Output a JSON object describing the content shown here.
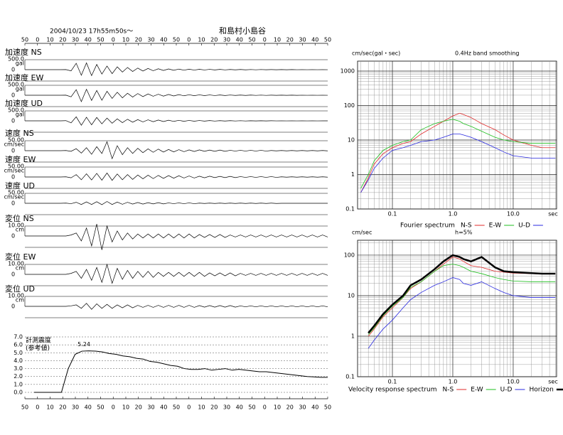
{
  "chart_data": [
    {
      "type": "waveform",
      "title": "2004/10/23 17h55m50s〜",
      "subtitle": "和島村小島谷",
      "time_labels": [
        50,
        0,
        10,
        20,
        30,
        40,
        50,
        0,
        10,
        20,
        30,
        40,
        50,
        0,
        10,
        20,
        30,
        40,
        50,
        0,
        10,
        20,
        30,
        40,
        50
      ],
      "traces": [
        {
          "label": "加速度 NS",
          "scale": 500,
          "scale_label": "500.0",
          "unit": "gal",
          "zero_label": "0",
          "values": [
            0,
            0,
            0,
            0,
            0,
            0,
            0,
            0,
            5,
            -60,
            320,
            -280,
            340,
            -300,
            260,
            -220,
            180,
            -200,
            140,
            -120,
            110,
            -90,
            80,
            -70,
            60,
            -55,
            45,
            -40,
            35,
            -30,
            28,
            -25,
            22,
            -20,
            18,
            -16,
            15,
            -14,
            12,
            -11,
            10,
            -9,
            8,
            -8,
            7,
            -6,
            6,
            -5,
            5,
            -5,
            4,
            -4,
            4,
            -3,
            3,
            -3,
            3,
            -2,
            2,
            -2
          ]
        },
        {
          "label": "加速度 EW",
          "scale": 500,
          "scale_label": "500.0",
          "unit": "gal",
          "zero_label": "0",
          "values": [
            0,
            0,
            0,
            0,
            0,
            0,
            0,
            0,
            5,
            -80,
            280,
            -320,
            300,
            -260,
            240,
            -250,
            200,
            -160,
            150,
            -130,
            100,
            -90,
            85,
            -70,
            65,
            -50,
            50,
            -45,
            40,
            -35,
            30,
            -28,
            25,
            -22,
            20,
            -18,
            16,
            -15,
            13,
            -12,
            11,
            -10,
            9,
            -8,
            8,
            -7,
            6,
            -6,
            5,
            -5,
            5,
            -4,
            4,
            -4,
            3,
            -3,
            3,
            -3,
            2,
            -2
          ]
        },
        {
          "label": "加速度 UD",
          "scale": 500,
          "scale_label": "500.0",
          "unit": "gal",
          "zero_label": "0",
          "values": [
            0,
            0,
            0,
            0,
            0,
            0,
            0,
            0,
            10,
            -100,
            200,
            -220,
            180,
            -200,
            170,
            -150,
            140,
            -120,
            100,
            -90,
            80,
            -70,
            60,
            -55,
            50,
            -45,
            40,
            -35,
            30,
            -28,
            25,
            -22,
            20,
            -18,
            15,
            -14,
            12,
            -11,
            10,
            -9,
            8,
            -7,
            6,
            -6,
            5,
            -5,
            4,
            -4,
            4,
            -3,
            3,
            -3,
            3,
            -2,
            2,
            -2,
            2,
            -2,
            1,
            -1
          ]
        },
        {
          "label": "速度 NS",
          "scale": 50,
          "scale_label": "50.00",
          "unit": "cm/sec",
          "zero_label": "0",
          "values": [
            0,
            0,
            0,
            0,
            0,
            0,
            0,
            0,
            1,
            -3,
            10,
            -12,
            15,
            -18,
            20,
            -14,
            45,
            -40,
            25,
            -20,
            15,
            -14,
            12,
            -10,
            9,
            -8,
            8,
            -7,
            6,
            -6,
            5,
            -5,
            4,
            -4,
            4,
            -3,
            3,
            -3,
            3,
            -3,
            2,
            -2,
            2,
            -2,
            2,
            -2,
            2,
            -2,
            1,
            -1,
            1,
            -1,
            1,
            -1,
            1,
            -1,
            1,
            -1,
            1,
            -1
          ]
        },
        {
          "label": "速度 EW",
          "scale": 50,
          "scale_label": "50.00",
          "unit": "cm/sec",
          "zero_label": "0",
          "values": [
            0,
            0,
            0,
            0,
            0,
            0,
            0,
            0,
            1,
            -4,
            12,
            -14,
            16,
            -15,
            18,
            -16,
            20,
            -17,
            15,
            -14,
            12,
            -12,
            10,
            -9,
            9,
            -8,
            8,
            -7,
            7,
            -6,
            6,
            -5,
            5,
            -5,
            4,
            -4,
            4,
            -3,
            3,
            -3,
            3,
            -3,
            2,
            -2,
            2,
            -2,
            2,
            -2,
            2,
            -2,
            1,
            -1,
            1,
            -1,
            1,
            -1,
            1,
            -1,
            1,
            -1
          ]
        },
        {
          "label": "速度 UD",
          "scale": 50,
          "scale_label": "50.00",
          "unit": "cm/sec",
          "zero_label": "0",
          "values": [
            0,
            0,
            0,
            0,
            0,
            0,
            0,
            0,
            1,
            -2,
            5,
            -6,
            7,
            -6,
            8,
            -7,
            9,
            -6,
            6,
            -5,
            5,
            -4,
            4,
            -4,
            3,
            -3,
            3,
            -3,
            2,
            -2,
            2,
            -2,
            2,
            -2,
            1,
            -1,
            1,
            -1,
            1,
            -1,
            1,
            -1,
            1,
            -1,
            1,
            -1,
            1,
            -1,
            1,
            -1,
            0,
            0,
            0,
            0,
            0,
            0,
            0,
            0,
            0,
            0
          ]
        },
        {
          "label": "変位 NS",
          "scale": 10,
          "scale_label": "10.00",
          "unit": "cm",
          "zero_label": "0",
          "values": [
            0,
            0,
            0,
            0,
            0,
            0,
            0,
            0,
            0,
            1,
            3,
            -5,
            8,
            -10,
            12,
            -14,
            10,
            -6,
            5,
            -4,
            3,
            -3,
            2,
            -2,
            2,
            -2,
            2,
            -2,
            2,
            -2,
            2,
            -2,
            2,
            -2,
            1.5,
            -1.5,
            1.5,
            -1.5,
            1.5,
            -1.5,
            1,
            -1,
            1,
            -1,
            1,
            -1,
            1,
            -1,
            1,
            -1,
            1,
            -1,
            1,
            -1,
            1,
            -1,
            1,
            -1,
            1,
            -1
          ]
        },
        {
          "label": "変位 EW",
          "scale": 10,
          "scale_label": "10.00",
          "unit": "cm",
          "zero_label": "0",
          "values": [
            0,
            0,
            0,
            0,
            0,
            0,
            0,
            0,
            0,
            1,
            3,
            -4,
            5,
            -6,
            7,
            -8,
            10,
            -9,
            6,
            -5,
            4,
            -4,
            3,
            -3,
            3,
            -3,
            2,
            -2,
            2,
            -2,
            2,
            -2,
            2,
            -2,
            2,
            -2,
            1.5,
            -1.5,
            1.5,
            -1.5,
            1.5,
            -1.5,
            1,
            -1,
            1,
            -1,
            1,
            -1,
            1,
            -1,
            1,
            -1,
            1,
            -1,
            1,
            -1,
            1,
            -1,
            1,
            -1
          ]
        },
        {
          "label": "変位 UD",
          "scale": 10,
          "scale_label": "10.00",
          "unit": "cm",
          "zero_label": "0",
          "values": [
            0,
            0,
            0,
            0,
            0,
            0,
            0,
            0,
            0,
            0.5,
            1.5,
            -2,
            3,
            -3,
            2.5,
            -2,
            2,
            -2,
            1.5,
            -1.5,
            1.5,
            -1.5,
            1,
            -1,
            1,
            -1,
            1,
            -1,
            1,
            -1,
            1,
            -1,
            1,
            -1,
            0.8,
            -0.8,
            0.8,
            -0.8,
            0.8,
            -0.8,
            0.8,
            -0.8,
            0.5,
            -0.5,
            0.5,
            -0.5,
            0.5,
            -0.5,
            0.5,
            -0.5,
            0.5,
            -0.5,
            0.5,
            -0.5,
            0.5,
            -0.5,
            0.5,
            -0.5,
            0.5,
            -0.5
          ]
        }
      ]
    },
    {
      "type": "line",
      "title": "計測震度",
      "subtitle": "(参考値)",
      "peak": 5.24,
      "peak_label": "5.24",
      "time_labels": [
        50,
        0,
        10,
        20,
        30,
        40,
        50,
        0,
        10,
        20,
        30,
        40,
        50,
        0,
        10,
        20,
        30,
        40,
        50,
        0,
        10,
        20,
        30,
        40,
        50
      ],
      "values": [
        0,
        0,
        0,
        0,
        0,
        3.0,
        4.8,
        5.2,
        5.24,
        5.2,
        5.1,
        4.9,
        4.8,
        4.6,
        4.5,
        4.3,
        4.2,
        3.9,
        3.8,
        3.6,
        3.4,
        3.3,
        3.0,
        2.9,
        2.9,
        3.0,
        2.8,
        2.9,
        3.0,
        2.8,
        2.9,
        2.8,
        2.7,
        2.6,
        2.6,
        2.5,
        2.4,
        2.3,
        2.2,
        2.1,
        2.0,
        1.95,
        1.9,
        1.9
      ],
      "ylim": [
        0,
        7
      ],
      "yticks": [
        {
          "value": 0,
          "label": "0.0"
        },
        {
          "value": 1,
          "label": "1.0"
        },
        {
          "value": 2,
          "label": "2.0"
        },
        {
          "value": 3,
          "label": "3.0"
        },
        {
          "value": 4,
          "label": "4.0"
        },
        {
          "value": 5,
          "label": "5.0"
        },
        {
          "value": 6,
          "label": "6.0"
        },
        {
          "value": 7,
          "label": "7.0"
        }
      ],
      "grid": true,
      "color": "#000000"
    },
    {
      "type": "line",
      "log_scale": true,
      "title": "Fourier spectrum",
      "y_label": "cm/sec(gal・sec)",
      "note": "0.4Hz band smoothing",
      "x_unit": "sec",
      "x": [
        0.03,
        0.04,
        0.05,
        0.07,
        0.1,
        0.15,
        0.2,
        0.3,
        0.5,
        0.7,
        1,
        1.3,
        1.5,
        2,
        3,
        5,
        7,
        10,
        20,
        30,
        50
      ],
      "xlim": [
        0.0265,
        52.3
      ],
      "ylim": [
        0.1,
        1945
      ],
      "xticks": [
        0.1,
        {
          "value": 1,
          "label": "1.0"
        },
        {
          "value": 10,
          "label": "10.0"
        }
      ],
      "yticks": [
        0.1,
        1,
        10,
        100,
        1000
      ],
      "grid": true,
      "series": [
        {
          "name": "N-S",
          "color": "#e02a2a",
          "values": [
            0.3,
            0.8,
            2,
            4,
            6,
            8,
            9,
            15,
            25,
            35,
            50,
            60,
            55,
            45,
            30,
            20,
            14,
            10,
            7,
            6,
            6
          ]
        },
        {
          "name": "E-W",
          "color": "#1fbf1f",
          "values": [
            0.4,
            1,
            2.5,
            5,
            7,
            9,
            10,
            20,
            30,
            35,
            40,
            35,
            30,
            25,
            18,
            12,
            10,
            9,
            8,
            8,
            8
          ]
        },
        {
          "name": "U-D",
          "color": "#2a2ae0",
          "values": [
            0.3,
            0.7,
            1.5,
            3,
            5,
            6,
            7,
            9,
            10,
            12,
            15,
            15,
            14,
            12,
            9,
            6,
            4.5,
            3.5,
            3,
            3,
            3
          ]
        }
      ]
    },
    {
      "type": "line",
      "log_scale": true,
      "title": "Velocity response spectrum",
      "y_label": "cm/sec",
      "note": "h=5%",
      "x_unit": "sec",
      "x": [
        0.04,
        0.05,
        0.07,
        0.1,
        0.15,
        0.2,
        0.3,
        0.5,
        0.7,
        1,
        1.3,
        1.5,
        2,
        3,
        5,
        7,
        10,
        20,
        30,
        50
      ],
      "xlim": [
        0.0265,
        52.3
      ],
      "ylim": [
        0.1,
        233
      ],
      "xticks": [
        0.1,
        {
          "value": 1,
          "label": "1.0"
        },
        {
          "value": 10,
          "label": "10.0"
        }
      ],
      "yticks": [
        0.1,
        1,
        10,
        100
      ],
      "grid": true,
      "series": [
        {
          "name": "N-S",
          "color": "#e02a2a",
          "values": [
            1,
            1.5,
            3,
            5,
            9,
            15,
            22,
            40,
            60,
            90,
            80,
            70,
            55,
            50,
            40,
            38,
            36,
            35,
            34,
            34
          ]
        },
        {
          "name": "E-W",
          "color": "#1fbf1f",
          "values": [
            1.1,
            1.6,
            3.2,
            5.5,
            9,
            16,
            22,
            40,
            55,
            60,
            55,
            50,
            40,
            35,
            28,
            25,
            23,
            22,
            22,
            22
          ]
        },
        {
          "name": "U-D",
          "color": "#2a2ae0",
          "values": [
            0.5,
            0.8,
            1.5,
            2.5,
            5,
            8,
            12,
            18,
            22,
            28,
            25,
            20,
            18,
            22,
            15,
            12,
            10,
            9,
            9,
            9
          ]
        },
        {
          "name": "Horizon",
          "color": "#000000",
          "line_width": 2.5,
          "values": [
            1.2,
            1.8,
            3.5,
            6,
            10,
            18,
            25,
            45,
            70,
            100,
            90,
            80,
            70,
            90,
            50,
            40,
            38,
            36,
            35,
            35
          ]
        }
      ]
    }
  ]
}
